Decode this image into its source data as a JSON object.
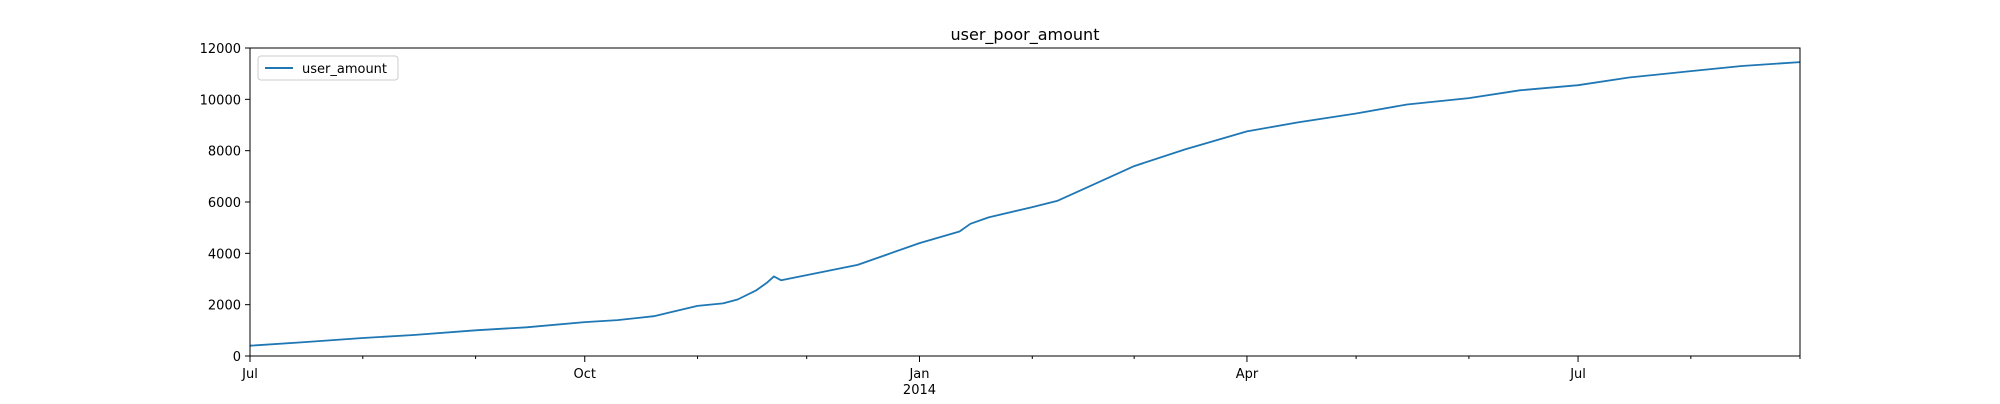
{
  "chart_data": {
    "type": "line",
    "title": "user_poor_amount",
    "xlabel": "",
    "ylabel": "",
    "x_range": [
      "2013-07-01",
      "2014-08-31"
    ],
    "ylim": [
      0,
      12000
    ],
    "y_ticks": [
      0,
      2000,
      4000,
      6000,
      8000,
      10000,
      12000
    ],
    "x_major_ticks": [
      {
        "date": "2013-07-01",
        "label": "Jul",
        "sublabel": ""
      },
      {
        "date": "2013-10-01",
        "label": "Oct",
        "sublabel": ""
      },
      {
        "date": "2014-01-01",
        "label": "Jan",
        "sublabel": "2014"
      },
      {
        "date": "2014-04-01",
        "label": "Apr",
        "sublabel": ""
      },
      {
        "date": "2014-07-01",
        "label": "Jul",
        "sublabel": ""
      }
    ],
    "x_minor_ticks": [
      "2013-08-01",
      "2013-09-01",
      "2013-11-01",
      "2013-12-01",
      "2014-02-01",
      "2014-03-01",
      "2014-05-01",
      "2014-06-01",
      "2014-08-01",
      "2014-08-31"
    ],
    "grid": false,
    "legend_position": "top-left",
    "series": [
      {
        "name": "user_amount",
        "color": "#1f77b4",
        "points": [
          [
            "2013-07-01",
            400
          ],
          [
            "2013-07-15",
            530
          ],
          [
            "2013-08-01",
            700
          ],
          [
            "2013-08-15",
            820
          ],
          [
            "2013-09-01",
            1000
          ],
          [
            "2013-09-15",
            1120
          ],
          [
            "2013-10-01",
            1320
          ],
          [
            "2013-10-10",
            1400
          ],
          [
            "2013-10-20",
            1550
          ],
          [
            "2013-10-25",
            1720
          ],
          [
            "2013-11-01",
            1950
          ],
          [
            "2013-11-08",
            2050
          ],
          [
            "2013-11-12",
            2200
          ],
          [
            "2013-11-17",
            2550
          ],
          [
            "2013-11-20",
            2850
          ],
          [
            "2013-11-22",
            3100
          ],
          [
            "2013-11-24",
            2950
          ],
          [
            "2013-12-01",
            3150
          ],
          [
            "2013-12-15",
            3550
          ],
          [
            "2014-01-01",
            4400
          ],
          [
            "2014-01-12",
            4850
          ],
          [
            "2014-01-15",
            5150
          ],
          [
            "2014-01-20",
            5400
          ],
          [
            "2014-02-01",
            5800
          ],
          [
            "2014-02-08",
            6050
          ],
          [
            "2014-02-15",
            6500
          ],
          [
            "2014-03-01",
            7400
          ],
          [
            "2014-03-15",
            8050
          ],
          [
            "2014-04-01",
            8750
          ],
          [
            "2014-04-15",
            9100
          ],
          [
            "2014-05-01",
            9450
          ],
          [
            "2014-05-15",
            9800
          ],
          [
            "2014-06-01",
            10050
          ],
          [
            "2014-06-15",
            10350
          ],
          [
            "2014-07-01",
            10550
          ],
          [
            "2014-07-15",
            10850
          ],
          [
            "2014-08-01",
            11100
          ],
          [
            "2014-08-15",
            11300
          ],
          [
            "2014-08-31",
            11450
          ]
        ]
      }
    ]
  }
}
